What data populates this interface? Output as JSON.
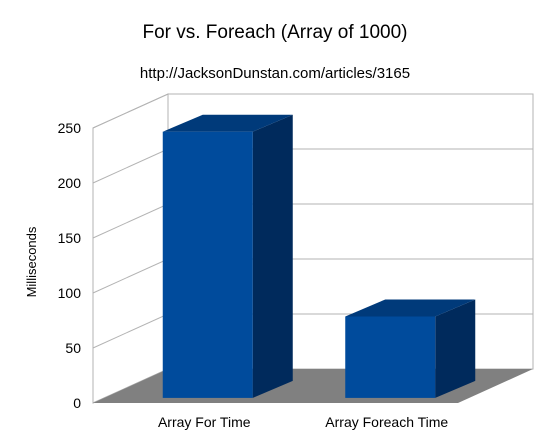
{
  "chart_data": {
    "type": "bar",
    "title": "For vs. Foreach (Array of 1000)",
    "subtitle": "http://JacksonDunstan.com/articles/3165",
    "xlabel": "",
    "ylabel": "Milliseconds",
    "categories": [
      "Array For Time",
      "Array Foreach Time"
    ],
    "values": [
      242,
      74
    ],
    "ylim": [
      0,
      250
    ],
    "yticks": [
      0,
      50,
      100,
      150,
      200,
      250
    ],
    "grid": true,
    "legend": "none",
    "style": "3d",
    "colors": {
      "bar_front": "#004b9c",
      "bar_side": "#002a5c",
      "bar_top": "#003a7a",
      "floor": "#808080",
      "grid": "#b3b3b3"
    }
  }
}
